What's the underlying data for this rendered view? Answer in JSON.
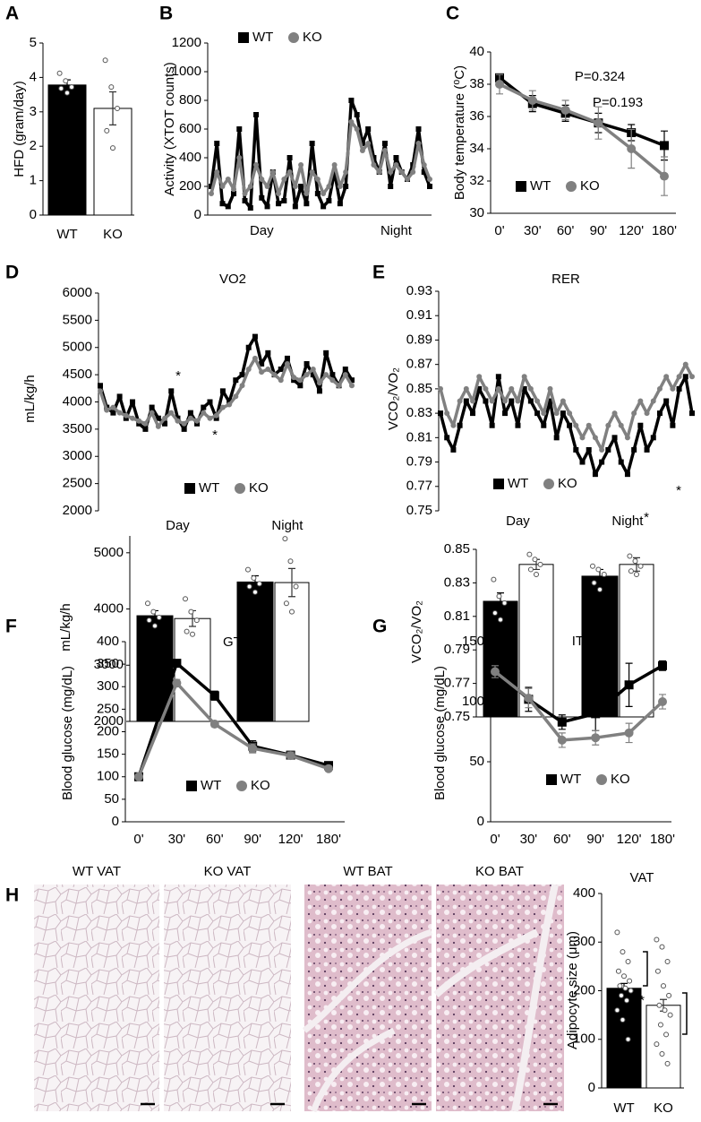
{
  "figure": {
    "micrographs": {
      "panel": "H",
      "labels": [
        "WT VAT",
        "KO VAT",
        "WT BAT",
        "KO BAT"
      ]
    }
  },
  "chart_data": [
    {
      "panel": "A",
      "type": "bar",
      "ylabel": "HFD (gram/day)",
      "categories": [
        "WT",
        "KO"
      ],
      "values": [
        3.78,
        3.1
      ],
      "errors": [
        0.15,
        0.48
      ],
      "colors": [
        "#000000",
        "#ffffff"
      ],
      "points": [
        [
          4.12,
          3.9,
          3.72,
          3.68,
          3.55
        ],
        [
          4.5,
          3.72,
          3.1,
          2.45,
          1.95
        ]
      ],
      "ylim": [
        0,
        5
      ],
      "yticks": [
        0,
        1,
        2,
        3,
        4,
        5
      ]
    },
    {
      "panel": "B",
      "type": "line",
      "ylabel": "Activity (XTOT counts)",
      "legend": "upper center",
      "categories": [
        null,
        null,
        null,
        null,
        null,
        null,
        null,
        null,
        null,
        "Day",
        null,
        null,
        null,
        null,
        null,
        null,
        null,
        null,
        null,
        null,
        null,
        null,
        null,
        null,
        null,
        null,
        null,
        null,
        null,
        null,
        null,
        null,
        null,
        "Night",
        null,
        null,
        null,
        null,
        null,
        null
      ],
      "series": [
        {
          "name": "WT",
          "color": "#000000",
          "marker": "square",
          "values": [
            200,
            500,
            80,
            60,
            150,
            600,
            100,
            50,
            700,
            120,
            60,
            300,
            80,
            100,
            400,
            60,
            200,
            80,
            500,
            150,
            60,
            100,
            300,
            80,
            200,
            800,
            700,
            500,
            600,
            400,
            300,
            500,
            200,
            400,
            300,
            250,
            350,
            600,
            300,
            200
          ]
        },
        {
          "name": "KO",
          "color": "#808080",
          "marker": "circle",
          "values": [
            150,
            300,
            200,
            250,
            180,
            400,
            150,
            200,
            350,
            250,
            200,
            300,
            150,
            250,
            300,
            200,
            350,
            150,
            300,
            250,
            150,
            200,
            350,
            200,
            300,
            650,
            600,
            450,
            500,
            350,
            300,
            450,
            300,
            350,
            300,
            250,
            300,
            500,
            350,
            250
          ]
        }
      ],
      "ylim": [
        0,
        1200
      ],
      "yticks": [
        0,
        200,
        400,
        600,
        800,
        1000,
        1200
      ]
    },
    {
      "panel": "C",
      "type": "line",
      "ylabel": "Body temperature (⁰C)",
      "legend": "lower left",
      "categories": [
        "0'",
        "30'",
        "60'",
        "90'",
        "120'",
        "180'"
      ],
      "series": [
        {
          "name": "WT",
          "color": "#000000",
          "marker": "square",
          "values": [
            38.4,
            36.8,
            36.2,
            35.6,
            35,
            34.2
          ],
          "errors": [
            0.2,
            0.5,
            0.5,
            0.6,
            0.5,
            0.9
          ]
        },
        {
          "name": "KO",
          "color": "#808080",
          "marker": "circle",
          "values": [
            38,
            37,
            36.4,
            35.6,
            34,
            32.3
          ],
          "errors": [
            0.6,
            0.6,
            0.6,
            1.0,
            1.2,
            1.2
          ]
        }
      ],
      "annotations": [
        "P=0.324",
        "P=0.193"
      ],
      "ylim": [
        30,
        40
      ],
      "yticks": [
        30,
        32,
        34,
        36,
        38,
        40
      ]
    },
    {
      "panel": "D",
      "type": "line",
      "title": "VO2",
      "ylabel": "mL/kg/h",
      "legend": "lower center",
      "categories": [
        null,
        null,
        null,
        null,
        null,
        null,
        null,
        null,
        null,
        null,
        null,
        null,
        "Day",
        null,
        null,
        null,
        null,
        null,
        null,
        null,
        null,
        null,
        null,
        null,
        null,
        null,
        null,
        null,
        null,
        "Night",
        null,
        null,
        null,
        null,
        null,
        null,
        null,
        null,
        null,
        null
      ],
      "series": [
        {
          "name": "WT",
          "color": "#000000",
          "marker": "square",
          "values": [
            4300,
            3900,
            3800,
            4100,
            3700,
            4000,
            3600,
            3500,
            3900,
            3700,
            3600,
            4200,
            3700,
            3500,
            3800,
            3600,
            3900,
            4000,
            3700,
            4200,
            4000,
            4400,
            4500,
            5000,
            5200,
            4700,
            4900,
            4500,
            4600,
            4800,
            4400,
            4300,
            4700,
            4500,
            4200,
            4900,
            4500,
            4300,
            4600,
            4400
          ]
        },
        {
          "name": "KO",
          "color": "#808080",
          "marker": "circle",
          "values": [
            4200,
            3850,
            3900,
            3800,
            3750,
            3700,
            3650,
            3600,
            3800,
            3550,
            3700,
            3800,
            3650,
            3600,
            3700,
            3650,
            3800,
            3700,
            3750,
            3900,
            3950,
            4100,
            4300,
            4600,
            4800,
            4550,
            4600,
            4500,
            4400,
            4700,
            4450,
            4400,
            4500,
            4600,
            4350,
            4500,
            4400,
            4300,
            4500,
            4300
          ]
        }
      ],
      "ylim": [
        2000,
        6000
      ],
      "yticks": [
        2000,
        2500,
        3000,
        3500,
        4000,
        4500,
        5000,
        5500,
        6000
      ]
    },
    {
      "type": "bar",
      "ylabel": "mL/kg/h",
      "series": [
        {
          "color": "#000000",
          "values": [
            3880,
            4480
          ],
          "errors": [
            90,
            110
          ],
          "points": [
            [
              4100,
              3950,
              3850,
              3800,
              3700
            ],
            [
              4700,
              4550,
              4450,
              4400,
              4300
            ]
          ]
        },
        {
          "color": "#ffffff",
          "values": [
            3830,
            4470
          ],
          "errors": [
            140,
            250
          ],
          "points": [
            [
              4180,
              3950,
              3800,
              3600,
              3550
            ],
            [
              5250,
              4850,
              4400,
              4100,
              3950
            ]
          ]
        }
      ],
      "ylim": [
        2000,
        5300
      ],
      "yticks": [
        2000,
        3000,
        4000,
        5000
      ]
    },
    {
      "panel": "E",
      "type": "line",
      "title": "RER",
      "ylabel": "VCO₂/VO₂",
      "legend": "lower center",
      "categories": [
        null,
        null,
        null,
        null,
        null,
        null,
        null,
        null,
        null,
        null,
        null,
        null,
        "Day",
        null,
        null,
        null,
        null,
        null,
        null,
        null,
        null,
        null,
        null,
        null,
        null,
        null,
        null,
        null,
        null,
        "Night",
        null,
        null,
        null,
        null,
        null,
        null,
        null,
        null,
        null,
        null
      ],
      "series": [
        {
          "name": "WT",
          "color": "#000000",
          "marker": "square",
          "values": [
            0.83,
            0.81,
            0.8,
            0.82,
            0.84,
            0.83,
            0.85,
            0.84,
            0.82,
            0.86,
            0.83,
            0.84,
            0.82,
            0.85,
            0.84,
            0.83,
            0.82,
            0.84,
            0.81,
            0.83,
            0.82,
            0.8,
            0.79,
            0.8,
            0.78,
            0.79,
            0.8,
            0.81,
            0.79,
            0.78,
            0.8,
            0.82,
            0.8,
            0.81,
            0.83,
            0.84,
            0.82,
            0.85,
            0.86,
            0.83
          ]
        },
        {
          "name": "KO",
          "color": "#808080",
          "marker": "circle",
          "values": [
            0.85,
            0.83,
            0.82,
            0.84,
            0.85,
            0.84,
            0.86,
            0.85,
            0.84,
            0.85,
            0.84,
            0.85,
            0.84,
            0.86,
            0.85,
            0.84,
            0.83,
            0.85,
            0.83,
            0.84,
            0.83,
            0.82,
            0.81,
            0.82,
            0.81,
            0.8,
            0.82,
            0.83,
            0.82,
            0.81,
            0.83,
            0.84,
            0.83,
            0.84,
            0.85,
            0.86,
            0.85,
            0.86,
            0.87,
            0.86
          ]
        }
      ],
      "ylim": [
        0.75,
        0.93
      ],
      "yticks": [
        0.75,
        0.77,
        0.79,
        0.81,
        0.83,
        0.85,
        0.87,
        0.89,
        0.91,
        0.93
      ]
    },
    {
      "type": "bar",
      "ylabel": "VCO₂/VO₂",
      "series": [
        {
          "color": "#000000",
          "values": [
            0.819,
            0.834
          ],
          "errors": [
            0.005,
            0.004
          ],
          "points": [
            [
              0.832,
              0.822,
              0.818,
              0.812,
              0.808
            ],
            [
              0.84,
              0.838,
              0.835,
              0.83,
              0.826
            ]
          ]
        },
        {
          "color": "#ffffff",
          "values": [
            0.841,
            0.841
          ],
          "errors": [
            0.003,
            0.004
          ],
          "points": [
            [
              0.847,
              0.844,
              0.841,
              0.838,
              0.835
            ],
            [
              0.846,
              0.843,
              0.84,
              0.837,
              0.835
            ]
          ]
        }
      ],
      "ylim": [
        0.75,
        0.85
      ],
      "yticks": [
        0.75,
        0.77,
        0.79,
        0.81,
        0.83,
        0.85
      ]
    },
    {
      "panel": "F",
      "type": "line",
      "title": "GTT",
      "ylabel": "Blood glucose (mg/dL)",
      "legend": "lower center",
      "categories": [
        "0'",
        "30'",
        "60'",
        "90'",
        "120'",
        "180'"
      ],
      "series": [
        {
          "name": "WT",
          "color": "#000000",
          "marker": "square",
          "values": [
            100,
            352,
            280,
            168,
            148,
            125
          ],
          "errors": [
            5,
            8,
            10,
            12,
            8,
            6
          ]
        },
        {
          "name": "KO",
          "color": "#808080",
          "marker": "circle",
          "values": [
            100,
            308,
            217,
            163,
            147,
            118
          ],
          "errors": [
            5,
            8,
            6,
            10,
            8,
            5
          ]
        }
      ],
      "annotations": [
        "*",
        "*"
      ],
      "ylim": [
        0,
        400
      ],
      "yticks": [
        0,
        50,
        100,
        150,
        200,
        250,
        300,
        350,
        400
      ]
    },
    {
      "panel": "G",
      "type": "line",
      "title": "ITT",
      "ylabel": "Blood glucose (mg/dL)",
      "legend": "lower center",
      "categories": [
        "0'",
        "30'",
        "60'",
        "90'",
        "120'",
        "180'"
      ],
      "series": [
        {
          "name": "WT",
          "color": "#000000",
          "marker": "square",
          "values": [
            127,
            102,
            83,
            90,
            114,
            130
          ],
          "errors": [
            4,
            10,
            6,
            14,
            18,
            4
          ]
        },
        {
          "name": "KO",
          "color": "#808080",
          "marker": "circle",
          "values": [
            125,
            103,
            68,
            70,
            74,
            100
          ],
          "errors": [
            5,
            8,
            6,
            6,
            8,
            6
          ]
        }
      ],
      "annotations": [
        "*",
        "*"
      ],
      "ylim": [
        0,
        150
      ],
      "yticks": [
        0,
        50,
        100,
        150
      ]
    },
    {
      "type": "bar",
      "title": "VAT",
      "ylabel": "Adipocyte size (μm)",
      "categories": [
        "WT",
        "KO"
      ],
      "values": [
        205,
        170
      ],
      "errors": [
        10,
        12
      ],
      "colors": [
        "#000000",
        "#ffffff"
      ],
      "points": [
        [
          320,
          280,
          260,
          240,
          230,
          220,
          210,
          205,
          200,
          190,
          180,
          160,
          140,
          100
        ],
        [
          305,
          290,
          260,
          240,
          210,
          190,
          170,
          160,
          150,
          130,
          110,
          90,
          70,
          50
        ]
      ],
      "annotations": [
        "*"
      ],
      "ylim": [
        0,
        400
      ],
      "yticks": [
        0,
        100,
        200,
        300,
        400
      ]
    }
  ]
}
